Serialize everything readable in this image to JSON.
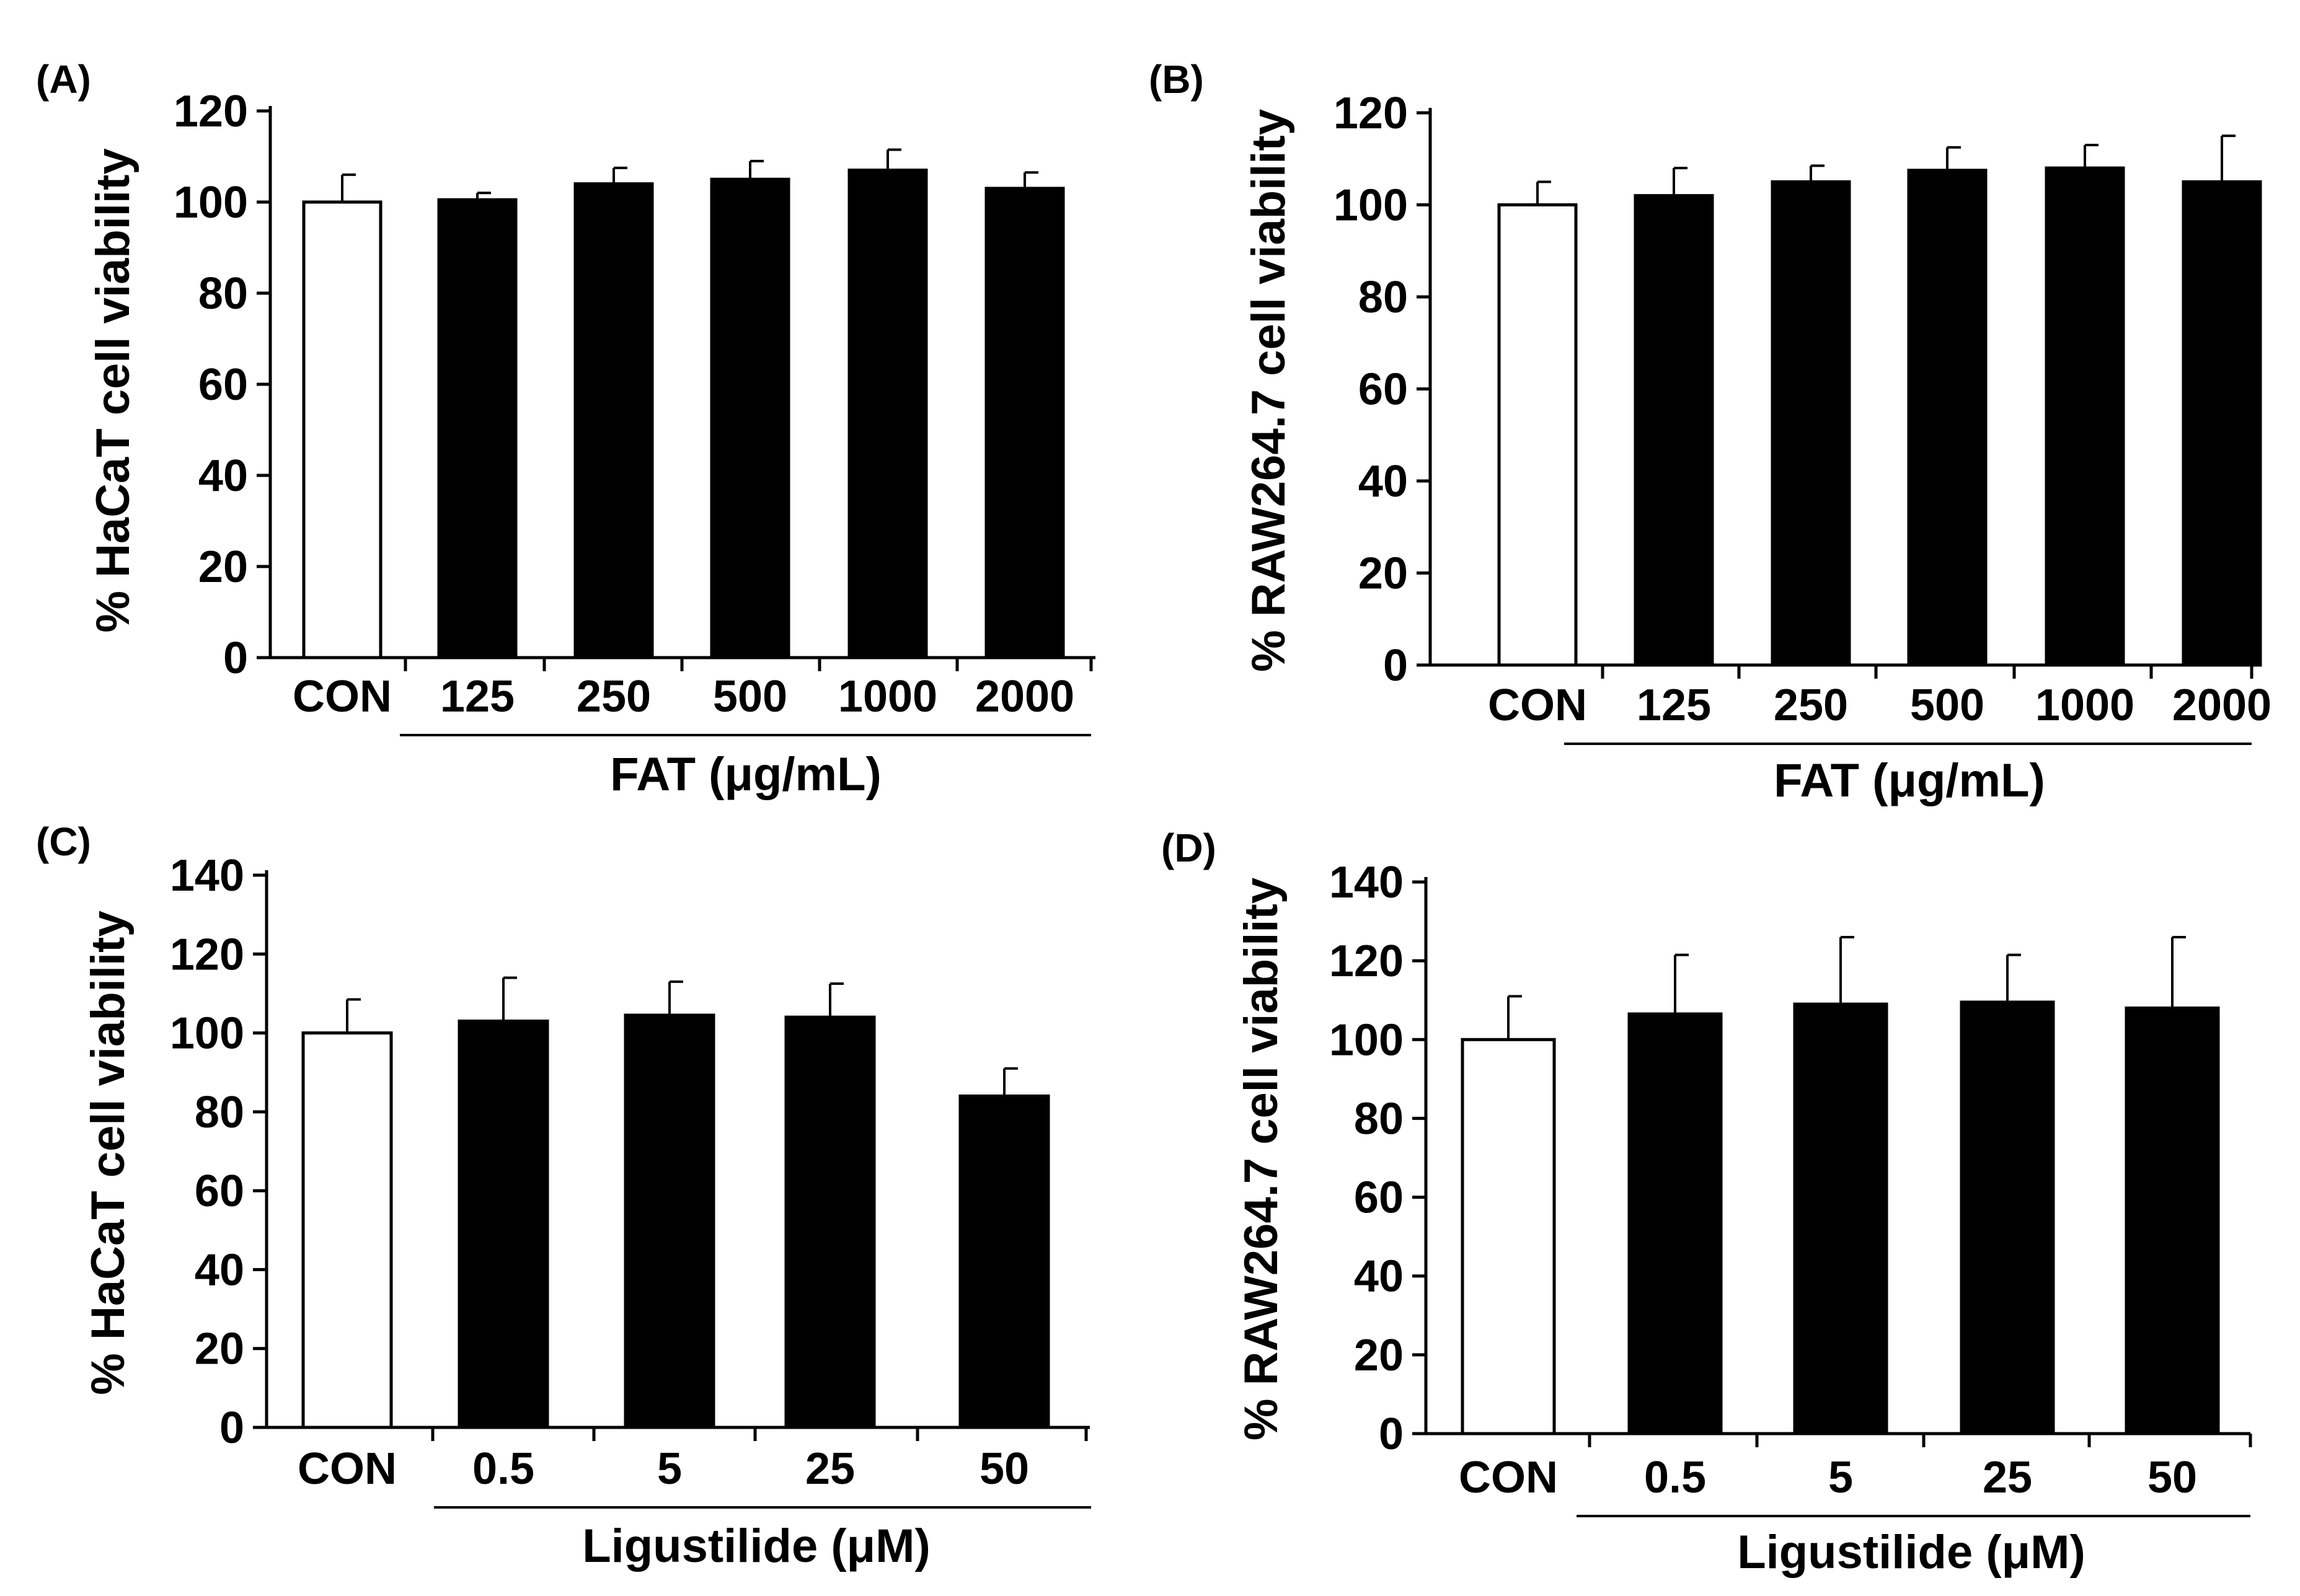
{
  "colors": {
    "control_fill": "#ffffff",
    "treatment_fill": "#000000",
    "stroke": "#000000",
    "background": "#ffffff"
  },
  "chart_data": [
    {
      "panel": "(A)",
      "type": "bar",
      "ylabel": "% HaCaT cell viability",
      "ylim": [
        0,
        120
      ],
      "yticks": [
        "0",
        "20",
        "40",
        "60",
        "80",
        "100",
        "120"
      ],
      "control_label": "CON",
      "categories": [
        "CON",
        "125",
        "250",
        "500",
        "1000",
        "2000"
      ],
      "values": [
        100,
        100.5,
        104,
        105,
        107,
        103
      ],
      "errors": [
        6,
        1.5,
        3.5,
        4,
        4.5,
        3.5
      ],
      "group_label": "FAT (μg/mL)"
    },
    {
      "panel": "(B)",
      "type": "bar",
      "ylabel": "% RAW264.7 cell viability",
      "ylim": [
        0,
        120
      ],
      "yticks": [
        "0",
        "20",
        "40",
        "60",
        "80",
        "100",
        "120"
      ],
      "control_label": "CON",
      "categories": [
        "CON",
        "125",
        "250",
        "500",
        "1000",
        "2000"
      ],
      "values": [
        100,
        102,
        105,
        107.5,
        108,
        105
      ],
      "errors": [
        5,
        6,
        3.5,
        5,
        5,
        10
      ],
      "group_label": "FAT (μg/mL)"
    },
    {
      "panel": "(C)",
      "type": "bar",
      "ylabel": "% HaCaT cell viability",
      "ylim": [
        0,
        140
      ],
      "yticks": [
        "0",
        "20",
        "40",
        "60",
        "80",
        "100",
        "120",
        "140"
      ],
      "control_label": "CON",
      "categories": [
        "CON",
        "0.5",
        "5",
        "25",
        "50"
      ],
      "values": [
        100,
        103,
        104.5,
        104,
        84
      ],
      "errors": [
        8.5,
        11,
        8.5,
        8.5,
        7
      ],
      "group_label": "Ligustilide (μM)"
    },
    {
      "panel": "(D)",
      "type": "bar",
      "ylabel": "% RAW264.7 cell viability",
      "ylim": [
        0,
        140
      ],
      "yticks": [
        "0",
        "20",
        "40",
        "60",
        "80",
        "100",
        "120",
        "140"
      ],
      "control_label": "CON",
      "categories": [
        "CON",
        "0.5",
        "5",
        "25",
        "50"
      ],
      "values": [
        100,
        106.5,
        109,
        109.5,
        108
      ],
      "errors": [
        11,
        15,
        17,
        12,
        18
      ],
      "group_label": "Ligustilide (μM)"
    }
  ]
}
